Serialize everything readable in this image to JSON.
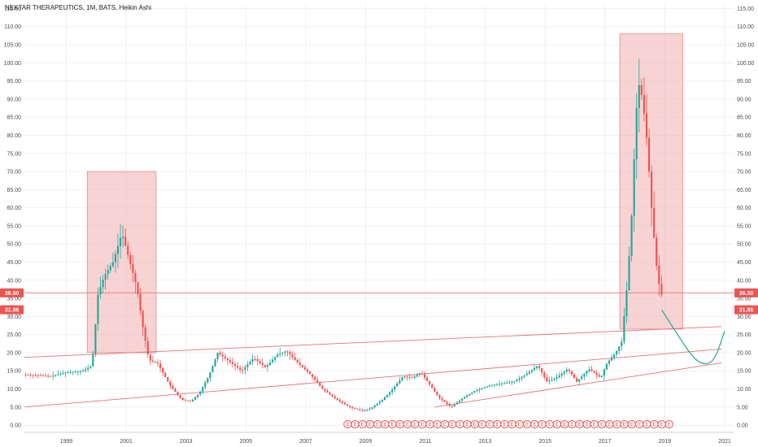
{
  "chart_data": {
    "type": "candlestick",
    "title": "NEKTAR THERAPEUTICS, 1M, BATS, Heikin Ashi",
    "ylim": [
      -2,
      116
    ],
    "xlim": [
      1997.6,
      2021.3
    ],
    "y_ticks": [
      "0.00",
      "5.00",
      "10.00",
      "15.00",
      "20.00",
      "25.00",
      "30.00",
      "35.00",
      "40.00",
      "45.00",
      "50.00",
      "55.00",
      "60.00",
      "65.00",
      "70.00",
      "75.00",
      "80.00",
      "85.00",
      "90.00",
      "95.00",
      "100.00",
      "105.00",
      "110.00",
      "115.00"
    ],
    "x_ticks": [
      "1999",
      "2001",
      "2003",
      "2005",
      "2007",
      "2009",
      "2011",
      "2013",
      "2015",
      "2017",
      "2019",
      "2021"
    ],
    "price_labels": [
      {
        "text": "36.50",
        "value": 36.5,
        "color": "#ef5350"
      },
      {
        "text": "31.86",
        "value": 31.86,
        "color": "#ef5350"
      }
    ],
    "horizontal_lines": [
      {
        "value": 36.5,
        "color": "#f08080"
      }
    ],
    "boxes": [
      {
        "x0": 1999.7,
        "x1": 2002.0,
        "y0": 20,
        "y1": 70,
        "color": "#f4b6b6"
      },
      {
        "x0": 2017.5,
        "x1": 2019.6,
        "y0": 26.5,
        "y1": 108,
        "color": "#f4b6b6"
      }
    ],
    "trend_lines": [
      {
        "x0": 1997.6,
        "y0": 18.7,
        "x1": 2020.9,
        "y1": 27.2,
        "color": "#e57373"
      },
      {
        "x0": 1997.6,
        "y0": 5.0,
        "x1": 2020.9,
        "y1": 21.0,
        "color": "#e57373"
      },
      {
        "x0": 2011.3,
        "y0": 5.0,
        "x1": 2020.9,
        "y1": 17.2,
        "color": "#e57373"
      }
    ],
    "projection_curve": {
      "color": "#26a69a",
      "points": [
        [
          2018.9,
          31.8
        ],
        [
          2019.5,
          24
        ],
        [
          2020.0,
          18
        ],
        [
          2020.4,
          16.5
        ],
        [
          2020.7,
          18.5
        ],
        [
          2021.0,
          26
        ]
      ]
    },
    "earnings_markers": {
      "label": "E",
      "color": "#e04848",
      "x": [
        2008.4,
        2008.65,
        2008.9,
        2009.15,
        2009.4,
        2009.65,
        2009.9,
        2010.15,
        2010.4,
        2010.65,
        2010.9,
        2011.15,
        2011.4,
        2011.65,
        2011.9,
        2012.15,
        2012.4,
        2012.65,
        2012.9,
        2013.15,
        2013.4,
        2013.65,
        2013.9,
        2014.15,
        2014.4,
        2014.65,
        2014.9,
        2015.15,
        2015.4,
        2015.65,
        2015.9,
        2016.15,
        2016.4,
        2016.65,
        2016.9,
        2017.15,
        2017.4,
        2017.65,
        2017.9,
        2018.15,
        2018.4,
        2018.65,
        2018.9,
        2019.15
      ]
    },
    "series_anchors": [
      [
        1997.6,
        14.0
      ],
      [
        1998.5,
        13.5
      ],
      [
        1999.0,
        14.5
      ],
      [
        1999.6,
        15.0
      ],
      [
        1999.9,
        16.5
      ],
      [
        2000.1,
        36.0
      ],
      [
        2000.3,
        41.0
      ],
      [
        2000.6,
        45.0
      ],
      [
        2000.9,
        53.0
      ],
      [
        2001.1,
        47.0
      ],
      [
        2001.4,
        38.0
      ],
      [
        2001.6,
        27.0
      ],
      [
        2001.8,
        18.0
      ],
      [
        2002.1,
        17.0
      ],
      [
        2002.5,
        11.0
      ],
      [
        2002.9,
        7.0
      ],
      [
        2003.2,
        6.5
      ],
      [
        2003.5,
        9.0
      ],
      [
        2003.8,
        13.5
      ],
      [
        2004.1,
        20.0
      ],
      [
        2004.5,
        17.5
      ],
      [
        2004.9,
        15.0
      ],
      [
        2005.3,
        18.5
      ],
      [
        2005.7,
        16.0
      ],
      [
        2006.1,
        19.5
      ],
      [
        2006.4,
        20.5
      ],
      [
        2006.8,
        17.0
      ],
      [
        2007.2,
        14.0
      ],
      [
        2007.6,
        10.0
      ],
      [
        2008.0,
        7.5
      ],
      [
        2008.5,
        5.0
      ],
      [
        2008.9,
        4.0
      ],
      [
        2009.2,
        4.5
      ],
      [
        2009.6,
        7.0
      ],
      [
        2009.9,
        9.5
      ],
      [
        2010.3,
        13.5
      ],
      [
        2010.6,
        13.0
      ],
      [
        2010.9,
        14.5
      ],
      [
        2011.2,
        11.0
      ],
      [
        2011.5,
        7.5
      ],
      [
        2011.9,
        5.0
      ],
      [
        2012.3,
        7.5
      ],
      [
        2012.7,
        9.5
      ],
      [
        2013.2,
        11.0
      ],
      [
        2013.6,
        11.5
      ],
      [
        2014.0,
        12.0
      ],
      [
        2014.4,
        14.0
      ],
      [
        2014.8,
        16.5
      ],
      [
        2015.1,
        12.0
      ],
      [
        2015.4,
        13.0
      ],
      [
        2015.8,
        15.5
      ],
      [
        2016.1,
        12.0
      ],
      [
        2016.5,
        15.5
      ],
      [
        2016.9,
        13.0
      ],
      [
        2017.1,
        17.0
      ],
      [
        2017.4,
        20.0
      ],
      [
        2017.6,
        23.0
      ],
      [
        2017.8,
        40.0
      ],
      [
        2017.95,
        60.0
      ],
      [
        2018.05,
        80.0
      ],
      [
        2018.15,
        95.0
      ],
      [
        2018.3,
        90.0
      ],
      [
        2018.45,
        78.0
      ],
      [
        2018.6,
        60.0
      ],
      [
        2018.75,
        45.0
      ],
      [
        2018.9,
        36.0
      ]
    ],
    "up_color": "#26a69a",
    "down_color": "#ef5350"
  }
}
